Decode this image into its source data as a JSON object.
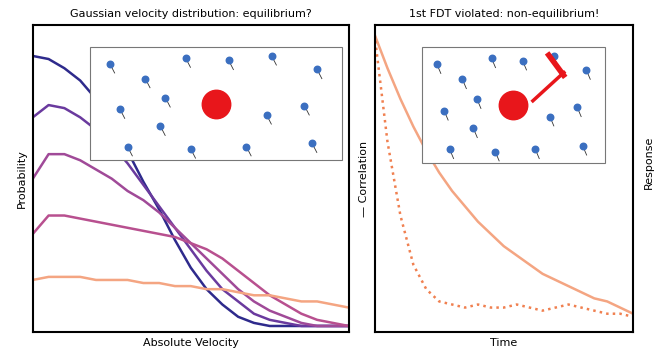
{
  "chart_data": [
    {
      "type": "line",
      "title": "Gaussian velocity distribution: equilibrium?",
      "x_label": "Absolute Velocity",
      "y_label": "Probability",
      "x": [
        0,
        0.5,
        1,
        1.5,
        2,
        2.5,
        3,
        3.5,
        4,
        4.5,
        5,
        5.5,
        6,
        6.5,
        7,
        7.5,
        8,
        8.5,
        9,
        9.5,
        10
      ],
      "xlim": [
        0,
        10
      ],
      "ylim": [
        0,
        1
      ],
      "xticks": [],
      "yticks": [],
      "tick_labels": false,
      "grid": false,
      "series": [
        {
          "color": "#2e2a8c",
          "line_style": "solid",
          "values": [
            0.9,
            0.89,
            0.86,
            0.82,
            0.76,
            0.68,
            0.59,
            0.49,
            0.4,
            0.3,
            0.21,
            0.14,
            0.09,
            0.05,
            0.03,
            0.02,
            0.02,
            0.02,
            0.02,
            0.02,
            0.02
          ]
        },
        {
          "color": "#6a3a9e",
          "line_style": "solid",
          "values": [
            0.7,
            0.74,
            0.73,
            0.7,
            0.66,
            0.61,
            0.55,
            0.48,
            0.41,
            0.34,
            0.27,
            0.2,
            0.14,
            0.1,
            0.06,
            0.04,
            0.03,
            0.02,
            0.02,
            0.02,
            0.02
          ]
        },
        {
          "color": "#a04a98",
          "line_style": "solid",
          "values": [
            0.5,
            0.58,
            0.58,
            0.56,
            0.53,
            0.5,
            0.46,
            0.43,
            0.39,
            0.34,
            0.29,
            0.24,
            0.19,
            0.14,
            0.1,
            0.07,
            0.05,
            0.03,
            0.02,
            0.02,
            0.02
          ]
        },
        {
          "color": "#b8508f",
          "line_style": "solid",
          "values": [
            0.32,
            0.38,
            0.38,
            0.37,
            0.36,
            0.35,
            0.34,
            0.33,
            0.32,
            0.31,
            0.29,
            0.27,
            0.24,
            0.2,
            0.16,
            0.12,
            0.09,
            0.06,
            0.04,
            0.03,
            0.02
          ]
        },
        {
          "color": "#f4a582",
          "line_style": "solid",
          "values": [
            0.17,
            0.18,
            0.18,
            0.18,
            0.17,
            0.17,
            0.17,
            0.16,
            0.16,
            0.15,
            0.15,
            0.14,
            0.14,
            0.13,
            0.12,
            0.12,
            0.11,
            0.1,
            0.1,
            0.09,
            0.08
          ]
        }
      ]
    },
    {
      "type": "line",
      "title": "1st FDT violated: non-equilibrium!",
      "x_label": "Time",
      "y_label": "— Correlation",
      "x": [
        0,
        0.5,
        1,
        1.5,
        2,
        2.5,
        3,
        3.5,
        4,
        4.5,
        5,
        5.5,
        6,
        6.5,
        7,
        7.5,
        8,
        8.5,
        9,
        9.5,
        10
      ],
      "xlim": [
        0,
        10
      ],
      "ylim": [
        0,
        1
      ],
      "xticks": [],
      "yticks": [],
      "tick_labels": false,
      "grid": false,
      "series": [
        {
          "color": "#f4a582",
          "line_style": "solid",
          "values": [
            0.97,
            0.86,
            0.76,
            0.67,
            0.59,
            0.52,
            0.46,
            0.41,
            0.36,
            0.32,
            0.28,
            0.25,
            0.22,
            0.19,
            0.17,
            0.15,
            0.13,
            0.11,
            0.1,
            0.08,
            0.06
          ]
        },
        {
          "color": "#f08050",
          "line_style": "dotted",
          "values": [
            0.97,
            0.62,
            0.38,
            0.22,
            0.14,
            0.1,
            0.09,
            0.08,
            0.09,
            0.08,
            0.08,
            0.09,
            0.08,
            0.07,
            0.08,
            0.09,
            0.08,
            0.07,
            0.06,
            0.06,
            0.05
          ]
        }
      ]
    }
  ],
  "figure_text": [
    "Response"
  ]
}
